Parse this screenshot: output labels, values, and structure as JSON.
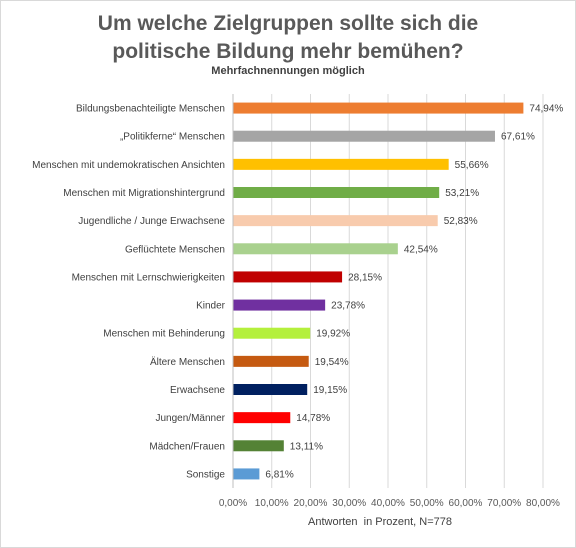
{
  "chart_data": {
    "type": "bar",
    "orientation": "horizontal",
    "title_line1": "Um welche Zielgruppen sollte sich die",
    "title_line2": "politische Bildung mehr bemühen?",
    "subtitle": "Mehrfachnennungen möglich",
    "xlabel": "Antworten  in Prozent, N=778",
    "ylabel": "",
    "xlim": [
      0,
      80
    ],
    "xticks": [
      "0,00%",
      "10,00%",
      "20,00%",
      "30,00%",
      "40,00%",
      "50,00%",
      "60,00%",
      "70,00%",
      "80,00%"
    ],
    "grid": true,
    "legend": "none",
    "categories": [
      "Bildungsbenachteiligte Menschen",
      "„Politikferne“ Menschen",
      "Menschen mit undemokratischen Ansichten",
      "Menschen mit Migrationshintergrund",
      "Jugendliche / Junge Erwachsene",
      "Geflüchtete Menschen",
      "Menschen mit Lernschwierigkeiten",
      "Kinder",
      "Menschen mit Behinderung",
      "Ältere Menschen",
      "Erwachsene",
      "Jungen/Männer",
      "Mädchen/Frauen",
      "Sonstige"
    ],
    "values": [
      74.94,
      67.61,
      55.66,
      53.21,
      52.83,
      42.54,
      28.15,
      23.78,
      19.92,
      19.54,
      19.15,
      14.78,
      13.11,
      6.81
    ],
    "value_labels": [
      "74,94%",
      "67,61%",
      "55,66%",
      "53,21%",
      "52,83%",
      "42,54%",
      "28,15%",
      "23,78%",
      "19,92%",
      "19,54%",
      "19,15%",
      "14,78%",
      "13,11%",
      "6,81%"
    ],
    "colors": [
      "#ED7D31",
      "#A5A5A5",
      "#FFC000",
      "#70AD47",
      "#F8CBAD",
      "#A9D18E",
      "#C00000",
      "#7030A0",
      "#B4F03C",
      "#C55A11",
      "#002060",
      "#FF0000",
      "#548235",
      "#5B9BD5"
    ]
  }
}
